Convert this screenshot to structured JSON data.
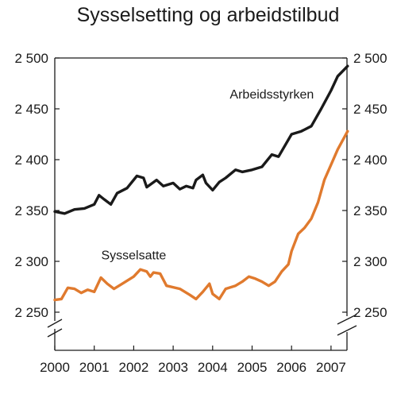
{
  "chart_data": {
    "type": "line",
    "title": "Sysselsetting og arbeidstilbud",
    "xlabel": "",
    "ylabel": "",
    "xlim": [
      2000,
      2007.42
    ],
    "ylim": [
      2230,
      2500
    ],
    "axis_break": true,
    "grid": false,
    "y_ticks": [
      2250,
      2300,
      2350,
      2400,
      2450,
      2500
    ],
    "y_tick_labels": [
      "2 250",
      "2 300",
      "2 350",
      "2 400",
      "2 450",
      "2 500"
    ],
    "x_ticks": [
      2000,
      2001,
      2002,
      2003,
      2004,
      2005,
      2006,
      2007
    ],
    "x_tick_labels": [
      "2000",
      "2001",
      "2002",
      "2003",
      "2004",
      "2005",
      "2006",
      "2007"
    ],
    "series": [
      {
        "name": "Arbeidsstyrken",
        "color": "#1a1a1a",
        "points": [
          [
            2000.0,
            2349
          ],
          [
            2000.25,
            2347
          ],
          [
            2000.5,
            2351
          ],
          [
            2000.75,
            2352
          ],
          [
            2001.0,
            2356
          ],
          [
            2001.12,
            2365
          ],
          [
            2001.25,
            2361
          ],
          [
            2001.42,
            2356
          ],
          [
            2001.58,
            2367
          ],
          [
            2001.83,
            2372
          ],
          [
            2002.08,
            2384
          ],
          [
            2002.25,
            2382
          ],
          [
            2002.33,
            2373
          ],
          [
            2002.58,
            2380
          ],
          [
            2002.75,
            2374
          ],
          [
            2003.0,
            2377
          ],
          [
            2003.17,
            2371
          ],
          [
            2003.33,
            2374
          ],
          [
            2003.5,
            2372
          ],
          [
            2003.58,
            2380
          ],
          [
            2003.75,
            2385
          ],
          [
            2003.83,
            2377
          ],
          [
            2004.0,
            2370
          ],
          [
            2004.17,
            2378
          ],
          [
            2004.33,
            2382
          ],
          [
            2004.58,
            2390
          ],
          [
            2004.75,
            2388
          ],
          [
            2005.0,
            2390
          ],
          [
            2005.25,
            2393
          ],
          [
            2005.5,
            2405
          ],
          [
            2005.67,
            2403
          ],
          [
            2006.0,
            2425
          ],
          [
            2006.25,
            2428
          ],
          [
            2006.5,
            2433
          ],
          [
            2006.75,
            2450
          ],
          [
            2007.0,
            2468
          ],
          [
            2007.17,
            2482
          ],
          [
            2007.42,
            2492
          ]
        ],
        "label_pos": [
          2005.5,
          2460
        ]
      },
      {
        "name": "Sysselsatte",
        "color": "#e07a2e",
        "points": [
          [
            2000.0,
            2262
          ],
          [
            2000.17,
            2263
          ],
          [
            2000.33,
            2274
          ],
          [
            2000.5,
            2273
          ],
          [
            2000.67,
            2269
          ],
          [
            2000.83,
            2272
          ],
          [
            2001.0,
            2270
          ],
          [
            2001.17,
            2284
          ],
          [
            2001.33,
            2278
          ],
          [
            2001.5,
            2273
          ],
          [
            2001.75,
            2279
          ],
          [
            2002.0,
            2285
          ],
          [
            2002.17,
            2292
          ],
          [
            2002.33,
            2290
          ],
          [
            2002.42,
            2285
          ],
          [
            2002.5,
            2289
          ],
          [
            2002.67,
            2288
          ],
          [
            2002.83,
            2276
          ],
          [
            2003.17,
            2273
          ],
          [
            2003.42,
            2267
          ],
          [
            2003.58,
            2263
          ],
          [
            2003.75,
            2270
          ],
          [
            2003.92,
            2278
          ],
          [
            2004.0,
            2268
          ],
          [
            2004.17,
            2263
          ],
          [
            2004.33,
            2273
          ],
          [
            2004.58,
            2276
          ],
          [
            2004.75,
            2280
          ],
          [
            2004.92,
            2285
          ],
          [
            2005.08,
            2283
          ],
          [
            2005.25,
            2280
          ],
          [
            2005.42,
            2276
          ],
          [
            2005.58,
            2280
          ],
          [
            2005.75,
            2290
          ],
          [
            2005.92,
            2297
          ],
          [
            2006.0,
            2310
          ],
          [
            2006.17,
            2327
          ],
          [
            2006.33,
            2333
          ],
          [
            2006.5,
            2342
          ],
          [
            2006.67,
            2358
          ],
          [
            2006.83,
            2380
          ],
          [
            2007.0,
            2395
          ],
          [
            2007.17,
            2410
          ],
          [
            2007.42,
            2428
          ]
        ],
        "label_pos": [
          2002.0,
          2302
        ]
      }
    ]
  }
}
